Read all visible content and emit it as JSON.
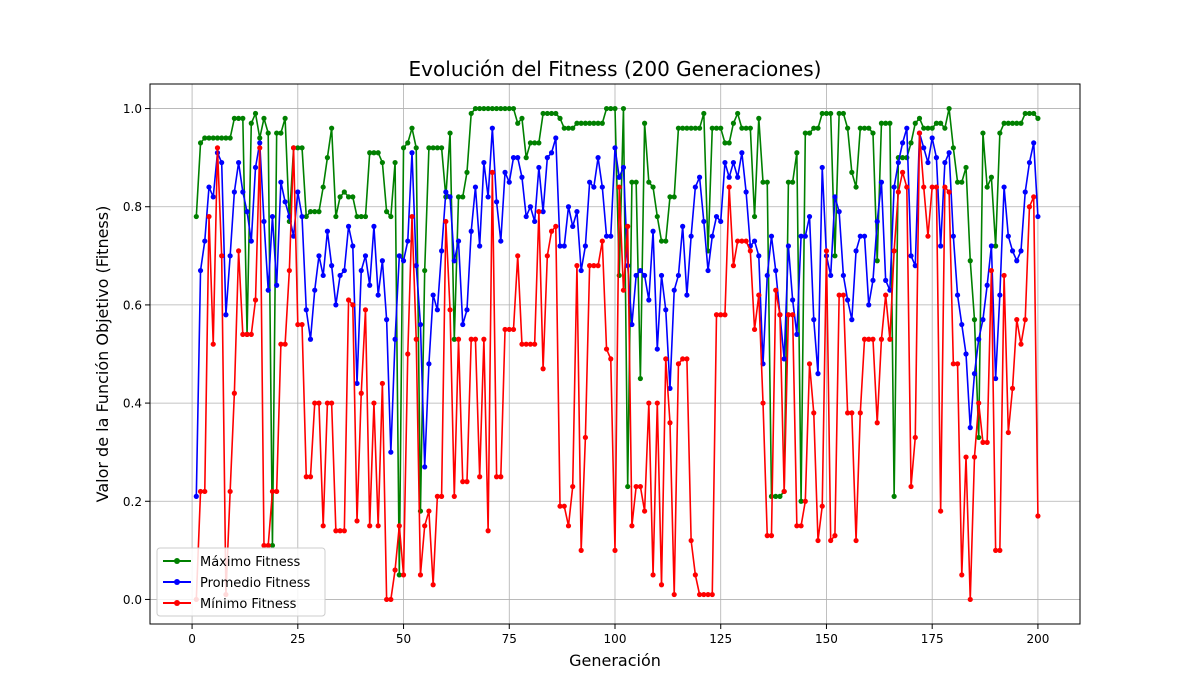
{
  "chart_data": {
    "type": "line",
    "title": "Evolución del Fitness (200 Generaciones)",
    "xlabel": "Generación",
    "ylabel": "Valor de la Función Objetivo (Fitness)",
    "xlim": [
      -9.95,
      209.95
    ],
    "ylim": [
      -0.05,
      1.05
    ],
    "xticks": [
      0,
      25,
      50,
      75,
      100,
      125,
      150,
      175,
      200
    ],
    "yticks": [
      0.0,
      0.2,
      0.4,
      0.6,
      0.8,
      1.0
    ],
    "xtick_labels": [
      "0",
      "25",
      "50",
      "75",
      "100",
      "125",
      "150",
      "175",
      "200"
    ],
    "ytick_labels": [
      "0.0",
      "0.2",
      "0.4",
      "0.6",
      "0.8",
      "1.0"
    ],
    "grid": true,
    "legend_position": "lower-left",
    "x_start": 1,
    "series": [
      {
        "name": "Máximo Fitness",
        "color": "#008000",
        "values": [
          0.78,
          0.93,
          0.94,
          0.94,
          0.94,
          0.94,
          0.94,
          0.94,
          0.94,
          0.98,
          0.98,
          0.98,
          0.54,
          0.97,
          0.99,
          0.94,
          0.98,
          0.95,
          0.11,
          0.95,
          0.95,
          0.98,
          0.77,
          0.92,
          0.92,
          0.92,
          0.78,
          0.79,
          0.79,
          0.79,
          0.84,
          0.9,
          0.96,
          0.78,
          0.82,
          0.83,
          0.82,
          0.82,
          0.78,
          0.78,
          0.78,
          0.91,
          0.91,
          0.91,
          0.89,
          0.79,
          0.78,
          0.89,
          0.05,
          0.92,
          0.93,
          0.96,
          0.92,
          0.18,
          0.67,
          0.92,
          0.92,
          0.92,
          0.92,
          0.82,
          0.95,
          0.53,
          0.82,
          0.82,
          0.87,
          0.99,
          1.0,
          1.0,
          1.0,
          1.0,
          1.0,
          1.0,
          1.0,
          1.0,
          1.0,
          1.0,
          0.97,
          0.98,
          0.9,
          0.93,
          0.93,
          0.93,
          0.99,
          0.99,
          0.99,
          0.99,
          0.98,
          0.96,
          0.96,
          0.96,
          0.97,
          0.97,
          0.97,
          0.97,
          0.97,
          0.97,
          0.97,
          1.0,
          1.0,
          1.0,
          0.66,
          1.0,
          0.23,
          0.85,
          0.85,
          0.45,
          0.97,
          0.85,
          0.84,
          0.78,
          0.73,
          0.73,
          0.82,
          0.82,
          0.96,
          0.96,
          0.96,
          0.96,
          0.96,
          0.96,
          0.99,
          0.71,
          0.96,
          0.96,
          0.96,
          0.93,
          0.93,
          0.97,
          0.99,
          0.96,
          0.96,
          0.96,
          0.78,
          0.98,
          0.85,
          0.85,
          0.21,
          0.21,
          0.21,
          0.22,
          0.85,
          0.85,
          0.91,
          0.2,
          0.95,
          0.95,
          0.96,
          0.96,
          0.99,
          0.99,
          0.99,
          0.7,
          0.99,
          0.99,
          0.96,
          0.87,
          0.84,
          0.96,
          0.96,
          0.96,
          0.95,
          0.69,
          0.97,
          0.97,
          0.97,
          0.21,
          0.9,
          0.9,
          0.9,
          0.93,
          0.97,
          0.98,
          0.96,
          0.96,
          0.96,
          0.97,
          0.97,
          0.96,
          1.0,
          0.92,
          0.85,
          0.85,
          0.88,
          0.69,
          0.57,
          0.33,
          0.95,
          0.84,
          0.86,
          0.72,
          0.95,
          0.97,
          0.97,
          0.97,
          0.97,
          0.97,
          0.99,
          0.99,
          0.99,
          0.98
        ]
      },
      {
        "name": "Promedio Fitness",
        "color": "#0000ff",
        "values": [
          0.21,
          0.67,
          0.73,
          0.84,
          0.82,
          0.91,
          0.89,
          0.58,
          0.7,
          0.83,
          0.89,
          0.83,
          0.79,
          0.73,
          0.88,
          0.93,
          0.77,
          0.63,
          0.78,
          0.64,
          0.85,
          0.81,
          0.78,
          0.74,
          0.83,
          0.78,
          0.59,
          0.53,
          0.63,
          0.7,
          0.66,
          0.75,
          0.68,
          0.6,
          0.66,
          0.67,
          0.76,
          0.72,
          0.44,
          0.67,
          0.7,
          0.64,
          0.76,
          0.62,
          0.69,
          0.57,
          0.3,
          0.53,
          0.7,
          0.69,
          0.73,
          0.91,
          0.68,
          0.56,
          0.27,
          0.48,
          0.62,
          0.59,
          0.71,
          0.83,
          0.82,
          0.69,
          0.73,
          0.56,
          0.59,
          0.75,
          0.84,
          0.72,
          0.89,
          0.82,
          0.96,
          0.81,
          0.73,
          0.87,
          0.85,
          0.9,
          0.9,
          0.86,
          0.78,
          0.8,
          0.77,
          0.88,
          0.79,
          0.9,
          0.91,
          0.94,
          0.72,
          0.72,
          0.8,
          0.76,
          0.79,
          0.67,
          0.72,
          0.85,
          0.84,
          0.9,
          0.84,
          0.74,
          0.74,
          0.92,
          0.86,
          0.88,
          0.68,
          0.56,
          0.66,
          0.67,
          0.66,
          0.61,
          0.75,
          0.51,
          0.66,
          0.59,
          0.43,
          0.63,
          0.66,
          0.76,
          0.62,
          0.74,
          0.84,
          0.86,
          0.77,
          0.67,
          0.74,
          0.78,
          0.77,
          0.89,
          0.86,
          0.89,
          0.86,
          0.91,
          0.83,
          0.72,
          0.73,
          0.7,
          0.48,
          0.66,
          0.74,
          0.67,
          0.58,
          0.49,
          0.72,
          0.61,
          0.54,
          0.74,
          0.74,
          0.78,
          0.57,
          0.46,
          0.88,
          0.7,
          0.66,
          0.82,
          0.79,
          0.66,
          0.61,
          0.57,
          0.71,
          0.74,
          0.74,
          0.6,
          0.65,
          0.77,
          0.85,
          0.65,
          0.63,
          0.84,
          0.89,
          0.93,
          0.96,
          0.7,
          0.68,
          0.95,
          0.92,
          0.89,
          0.94,
          0.9,
          0.72,
          0.89,
          0.91,
          0.74,
          0.62,
          0.56,
          0.5,
          0.35,
          0.46,
          0.53,
          0.57,
          0.64,
          0.72,
          0.45,
          0.62,
          0.84,
          0.74,
          0.71,
          0.69,
          0.71,
          0.83,
          0.89,
          0.93,
          0.78
        ]
      },
      {
        "name": "Mínimo Fitness",
        "color": "#ff0000",
        "values": [
          0.0,
          0.22,
          0.22,
          0.78,
          0.52,
          0.92,
          0.7,
          0.01,
          0.22,
          0.42,
          0.71,
          0.54,
          0.54,
          0.54,
          0.61,
          0.92,
          0.11,
          0.11,
          0.22,
          0.22,
          0.52,
          0.52,
          0.67,
          0.92,
          0.56,
          0.56,
          0.25,
          0.25,
          0.4,
          0.4,
          0.15,
          0.4,
          0.4,
          0.14,
          0.14,
          0.14,
          0.61,
          0.6,
          0.16,
          0.42,
          0.59,
          0.15,
          0.4,
          0.15,
          0.44,
          0.0,
          0.0,
          0.06,
          0.15,
          0.05,
          0.5,
          0.78,
          0.53,
          0.05,
          0.15,
          0.18,
          0.03,
          0.21,
          0.21,
          0.77,
          0.59,
          0.21,
          0.53,
          0.24,
          0.24,
          0.53,
          0.53,
          0.25,
          0.53,
          0.14,
          0.87,
          0.25,
          0.25,
          0.55,
          0.55,
          0.55,
          0.7,
          0.52,
          0.52,
          0.52,
          0.52,
          0.79,
          0.47,
          0.7,
          0.75,
          0.76,
          0.19,
          0.19,
          0.15,
          0.23,
          0.68,
          0.1,
          0.33,
          0.68,
          0.68,
          0.68,
          0.73,
          0.51,
          0.49,
          0.1,
          0.84,
          0.63,
          0.76,
          0.15,
          0.23,
          0.23,
          0.18,
          0.4,
          0.05,
          0.4,
          0.03,
          0.49,
          0.36,
          0.01,
          0.48,
          0.49,
          0.49,
          0.12,
          0.05,
          0.01,
          0.01,
          0.01,
          0.01,
          0.58,
          0.58,
          0.58,
          0.84,
          0.68,
          0.73,
          0.73,
          0.73,
          0.71,
          0.55,
          0.62,
          0.4,
          0.13,
          0.13,
          0.63,
          0.58,
          0.22,
          0.58,
          0.58,
          0.15,
          0.15,
          0.2,
          0.48,
          0.38,
          0.12,
          0.19,
          0.71,
          0.12,
          0.13,
          0.62,
          0.62,
          0.38,
          0.38,
          0.12,
          0.38,
          0.53,
          0.53,
          0.53,
          0.36,
          0.53,
          0.62,
          0.53,
          0.71,
          0.83,
          0.87,
          0.84,
          0.23,
          0.33,
          0.95,
          0.84,
          0.74,
          0.84,
          0.84,
          0.18,
          0.84,
          0.83,
          0.48,
          0.48,
          0.05,
          0.29,
          0.0,
          0.29,
          0.4,
          0.32,
          0.32,
          0.67,
          0.1,
          0.1,
          0.66,
          0.34,
          0.43,
          0.57,
          0.52,
          0.57,
          0.8,
          0.82,
          0.17
        ]
      }
    ]
  }
}
